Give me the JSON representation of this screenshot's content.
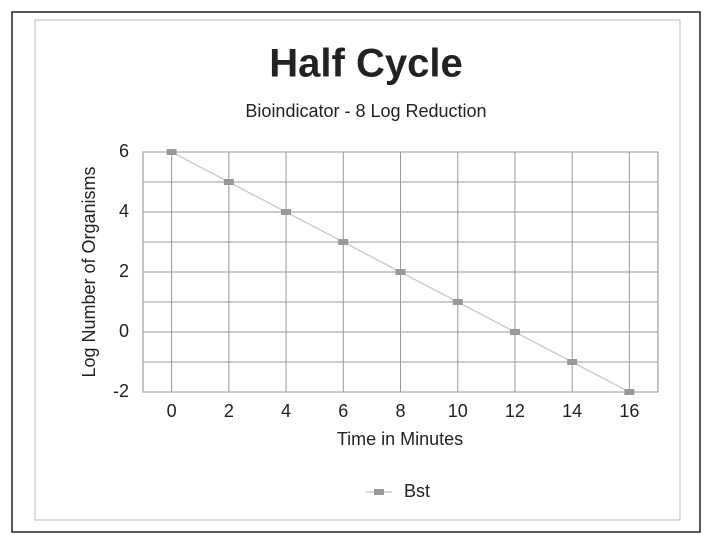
{
  "chart_data": {
    "type": "line",
    "title": "Half Cycle",
    "subtitle": "Bioindicator - 8 Log Reduction",
    "x_label": "Time in Minutes",
    "y_label": "Log Number of Organisms",
    "x": [
      0,
      2,
      4,
      6,
      8,
      10,
      12,
      14,
      16
    ],
    "series": [
      {
        "name": "Bst",
        "color": "#999999",
        "line_color": "#cccccc",
        "values": [
          6,
          5,
          4,
          3,
          2,
          1,
          0,
          -1,
          -2
        ]
      }
    ],
    "xlim": [
      -1,
      17
    ],
    "xticks": [
      0,
      2,
      4,
      6,
      8,
      10,
      12,
      14,
      16
    ],
    "ylim": [
      -2,
      6
    ],
    "yticks": [
      6,
      4,
      2,
      0,
      -2
    ],
    "y_minor_ticks": [
      5,
      3,
      1,
      -1
    ],
    "grid": true,
    "legend": "bottom"
  }
}
